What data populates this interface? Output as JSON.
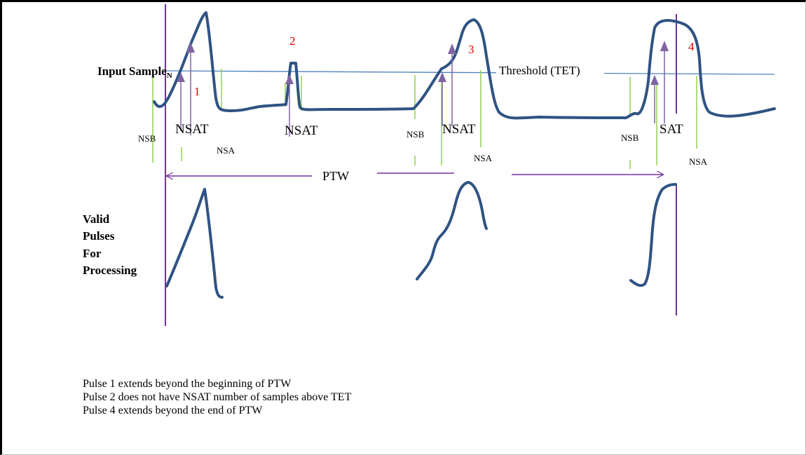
{
  "labels": {
    "input_sample": "Input Sample",
    "input_sample_sub": "N",
    "valid_pulses": [
      "Valid",
      "Pulses",
      "For",
      "Processing"
    ],
    "threshold": "Threshold (TET)",
    "ptw": "PTW",
    "nsat": "NSAT",
    "nsat_cut": "SAT",
    "nsb": "NSB",
    "nsa": "NSA",
    "pulse_numbers": [
      "1",
      "2",
      "3",
      "4"
    ]
  },
  "notes": [
    "Pulse 1 extends beyond the beginning of PTW",
    "Pulse 2 does not have NSAT number of samples above TET",
    "Pulse 4 extends beyond the end of PTW"
  ],
  "colors": {
    "signal": "#2f5383",
    "threshold_line": "#4f81bd",
    "window": "#7030a0",
    "marker": "#92d050",
    "arrow": "#8064a2",
    "pulse_number": "#e00000"
  }
}
